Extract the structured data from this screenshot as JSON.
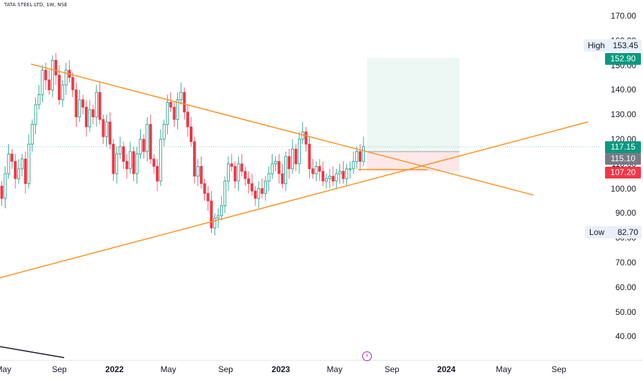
{
  "chart_data": {
    "type": "candlestick",
    "title": "TATA STEEL LTD, 1W, NSE",
    "y_ticks": [
      40,
      50,
      60,
      70,
      80,
      90,
      100,
      110,
      120,
      130,
      140,
      150,
      160,
      170
    ],
    "y_tick_labels": [
      "40.00",
      "50.00",
      "60.00",
      "70.00",
      "80.00",
      "90.00",
      "100.00",
      "110.00",
      "120.00",
      "130.00",
      "140.00",
      "150.00",
      "160.00",
      "170.00"
    ],
    "ylim": [
      32,
      178
    ],
    "x_ticks": [
      {
        "label": "May",
        "year": false
      },
      {
        "label": "Sep",
        "year": false
      },
      {
        "label": "2022",
        "year": true
      },
      {
        "label": "May",
        "year": false
      },
      {
        "label": "Sep",
        "year": false
      },
      {
        "label": "2023",
        "year": true
      },
      {
        "label": "May",
        "year": false
      },
      {
        "label": "Sep",
        "year": false
      },
      {
        "label": "2024",
        "year": true
      },
      {
        "label": "May",
        "year": false
      },
      {
        "label": "Sep",
        "year": false
      }
    ],
    "closes": [
      96,
      106,
      114,
      111,
      104,
      108,
      112,
      102,
      118,
      126,
      134,
      138,
      148,
      144,
      140,
      152,
      146,
      136,
      142,
      148,
      145,
      140,
      129,
      136,
      133,
      125,
      132,
      129,
      139,
      128,
      121,
      127,
      118,
      106,
      114,
      117,
      111,
      108,
      115,
      106,
      114,
      120,
      115,
      126,
      112,
      109,
      103,
      120,
      126,
      135,
      133,
      128,
      136,
      139,
      131,
      125,
      119,
      105,
      109,
      102,
      98,
      95,
      84,
      88,
      89,
      93,
      103,
      110,
      109,
      103,
      110,
      107,
      104,
      102,
      99,
      96,
      100,
      98,
      103,
      106,
      110,
      111,
      106,
      102,
      113,
      108,
      116,
      110,
      120,
      123,
      118,
      108,
      106,
      109,
      107,
      103,
      104,
      105,
      103,
      106,
      107,
      104,
      108,
      108,
      111,
      115,
      111,
      117
    ],
    "last_price": "117.15",
    "last_price_color": "#089981",
    "high": {
      "label": "High",
      "value": "153.45"
    },
    "low": {
      "label": "Low",
      "value": "82.70"
    },
    "target_price": "152.90",
    "target_color": "#089981",
    "entry_price": "115.10",
    "entry_color": "#787b86",
    "stop_price": "107.20",
    "stop_color": "#f23645",
    "up_color": "#089981",
    "down_color": "#f23645",
    "trendline_color": "#f7931e",
    "upper_trendline": {
      "from": 152.1,
      "to": 98
    },
    "lower_trendline": {
      "from": 64.7,
      "to": 127.3
    }
  }
}
